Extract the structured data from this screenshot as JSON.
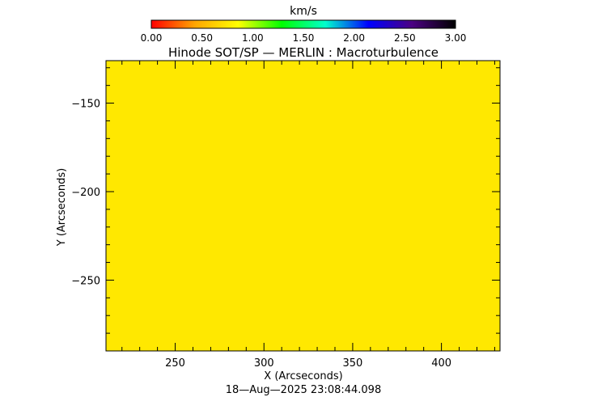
{
  "colorbar": {
    "unit_label": "km/s",
    "range": [
      0.0,
      3.0
    ],
    "tick_labels": [
      "0.00",
      "0.50",
      "1.00",
      "1.50",
      "2.00",
      "2.50",
      "3.00"
    ],
    "tick_values": [
      0.0,
      0.5,
      1.0,
      1.5,
      2.0,
      2.5,
      3.0
    ],
    "colors": [
      "#ff0000",
      "#ffa500",
      "#ffff00",
      "#00ff00",
      "#00ffcc",
      "#0000ff",
      "#4b0082",
      "#000000"
    ]
  },
  "chart_data": {
    "type": "heatmap",
    "title": "Hinode SOT/SP — MERLIN : Macroturbulence",
    "xlabel": "X (Arcseconds)",
    "ylabel": "Y (Arcseconds)",
    "xlim": [
      211,
      433
    ],
    "ylim": [
      -290,
      -126
    ],
    "x_ticks": [
      250,
      300,
      350,
      400
    ],
    "x_tick_labels": [
      "250",
      "300",
      "350",
      "400"
    ],
    "y_ticks": [
      -150,
      -200,
      -250
    ],
    "y_tick_labels": [
      "−150",
      "−200",
      "−250"
    ],
    "field_value": 1.0,
    "field_color": "#ffe800",
    "grid": false
  },
  "timestamp": "18—Aug—2025 23:08:44.098"
}
